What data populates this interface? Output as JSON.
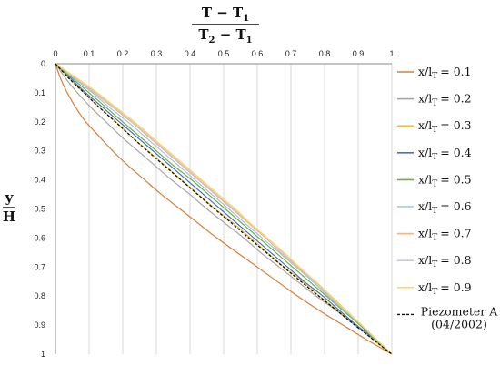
{
  "chart_data": {
    "type": "line",
    "x_axis": {
      "label_numerator": "T − T",
      "label_numerator_sub": "1",
      "label_denominator": "T",
      "label_denominator_sub1": "2",
      "label_denominator_mid": " − T",
      "label_denominator_sub2": "1",
      "range": [
        0,
        1
      ],
      "ticks": [
        "0",
        "0.1",
        "0.2",
        "0.3",
        "0.4",
        "0.5",
        "0.6",
        "0.7",
        "0.8",
        "0.9",
        "1"
      ],
      "position": "top"
    },
    "y_axis": {
      "label_numerator": "y",
      "label_denominator": "H",
      "range": [
        0,
        1
      ],
      "inverted": true,
      "ticks": [
        "0",
        "0.1",
        "0.2",
        "0.3",
        "0.4",
        "0.5",
        "0.6",
        "0.7",
        "0.8",
        "0.9",
        "1"
      ]
    },
    "grid": "vertical",
    "legend_position": "right",
    "y": [
      0,
      0.05,
      0.1,
      0.15,
      0.2,
      0.25,
      0.3,
      0.35,
      0.4,
      0.45,
      0.5,
      0.55,
      0.6,
      0.65,
      0.7,
      0.75,
      0.8,
      0.85,
      0.9,
      0.95,
      1
    ],
    "series": [
      {
        "name": "x/l",
        "name_sub": "T",
        "name_value": "= 0.1",
        "color": "#d4803c",
        "dashed": false,
        "x": [
          0,
          0.015,
          0.035,
          0.06,
          0.09,
          0.13,
          0.17,
          0.215,
          0.265,
          0.315,
          0.37,
          0.425,
          0.48,
          0.54,
          0.6,
          0.66,
          0.72,
          0.785,
          0.855,
          0.925,
          1
        ]
      },
      {
        "name": "x/l",
        "name_sub": "T",
        "name_value": "= 0.2",
        "color": "#a6a6a6",
        "dashed": false,
        "x": [
          0,
          0.03,
          0.065,
          0.105,
          0.15,
          0.195,
          0.245,
          0.295,
          0.345,
          0.4,
          0.45,
          0.505,
          0.56,
          0.61,
          0.665,
          0.72,
          0.775,
          0.835,
          0.89,
          0.945,
          1
        ]
      },
      {
        "name": "x/l",
        "name_sub": "T",
        "name_value": "= 0.3",
        "color": "#f2c230",
        "dashed": false,
        "x": [
          0,
          0.04,
          0.085,
          0.13,
          0.18,
          0.225,
          0.275,
          0.325,
          0.375,
          0.425,
          0.475,
          0.53,
          0.58,
          0.63,
          0.68,
          0.735,
          0.785,
          0.84,
          0.895,
          0.945,
          1
        ]
      },
      {
        "name": "x/l",
        "name_sub": "T",
        "name_value": "= 0.4",
        "color": "#4472c4",
        "dashed": false,
        "x": [
          0,
          0.045,
          0.09,
          0.14,
          0.19,
          0.24,
          0.29,
          0.34,
          0.39,
          0.44,
          0.49,
          0.54,
          0.59,
          0.64,
          0.69,
          0.74,
          0.795,
          0.845,
          0.895,
          0.95,
          1
        ]
      },
      {
        "name": "x/l",
        "name_sub": "T",
        "name_value": "= 0.5",
        "color": "#70ad47",
        "dashed": false,
        "x": [
          0,
          0.05,
          0.1,
          0.15,
          0.2,
          0.25,
          0.3,
          0.35,
          0.405,
          0.455,
          0.505,
          0.555,
          0.605,
          0.655,
          0.705,
          0.755,
          0.805,
          0.855,
          0.905,
          0.95,
          1
        ]
      },
      {
        "name": "x/l",
        "name_sub": "T",
        "name_value": "= 0.6",
        "color": "#9dc3e6",
        "dashed": false,
        "x": [
          0,
          0.055,
          0.11,
          0.16,
          0.215,
          0.265,
          0.315,
          0.365,
          0.415,
          0.465,
          0.515,
          0.565,
          0.615,
          0.665,
          0.715,
          0.765,
          0.81,
          0.86,
          0.91,
          0.955,
          1
        ]
      },
      {
        "name": "x/l",
        "name_sub": "T",
        "name_value": "= 0.7",
        "color": "#f4b183",
        "dashed": false,
        "x": [
          0,
          0.06,
          0.115,
          0.17,
          0.225,
          0.275,
          0.325,
          0.375,
          0.425,
          0.475,
          0.525,
          0.575,
          0.625,
          0.67,
          0.72,
          0.77,
          0.815,
          0.865,
          0.91,
          0.955,
          1
        ]
      },
      {
        "name": "x/l",
        "name_sub": "T",
        "name_value": "= 0.8",
        "color": "#c9c9d6",
        "dashed": false,
        "x": [
          0,
          0.062,
          0.12,
          0.175,
          0.23,
          0.28,
          0.33,
          0.38,
          0.43,
          0.48,
          0.53,
          0.58,
          0.63,
          0.675,
          0.725,
          0.77,
          0.82,
          0.865,
          0.91,
          0.955,
          1
        ]
      },
      {
        "name": "x/l",
        "name_sub": "T",
        "name_value": "= 0.9",
        "color": "#ffd966",
        "dashed": false,
        "x": [
          0,
          0.065,
          0.125,
          0.18,
          0.235,
          0.285,
          0.335,
          0.385,
          0.435,
          0.485,
          0.535,
          0.58,
          0.63,
          0.68,
          0.725,
          0.775,
          0.82,
          0.865,
          0.91,
          0.955,
          1
        ]
      },
      {
        "name": "Piezometer A",
        "name_line2": "(04/2002)",
        "color": "#111111",
        "dashed": true,
        "x": [
          0,
          0.04,
          0.085,
          0.13,
          0.178,
          0.225,
          0.273,
          0.323,
          0.373,
          0.423,
          0.473,
          0.525,
          0.575,
          0.627,
          0.678,
          0.73,
          0.783,
          0.837,
          0.89,
          0.945,
          1
        ]
      }
    ]
  }
}
